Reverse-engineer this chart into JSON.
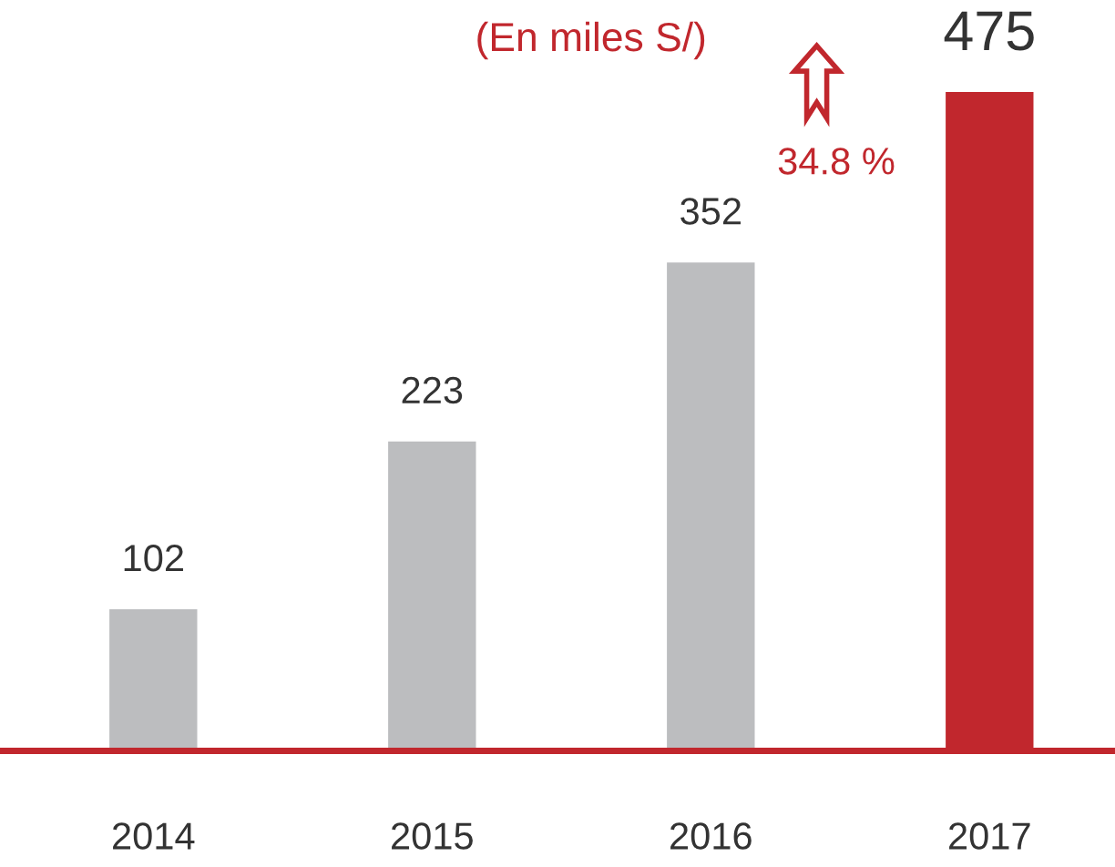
{
  "chart_data": {
    "type": "bar",
    "subtitle": "(En miles S/)",
    "categories": [
      "2014",
      "2015",
      "2016",
      "2017"
    ],
    "values": [
      102,
      223,
      352,
      475
    ],
    "colors": [
      "#bcbdbf",
      "#bcbdbf",
      "#bcbdbf",
      "#c1272d"
    ],
    "data_labels": true,
    "tick_labels": "x",
    "grid": false,
    "annotations": [
      "34.8 %"
    ]
  }
}
